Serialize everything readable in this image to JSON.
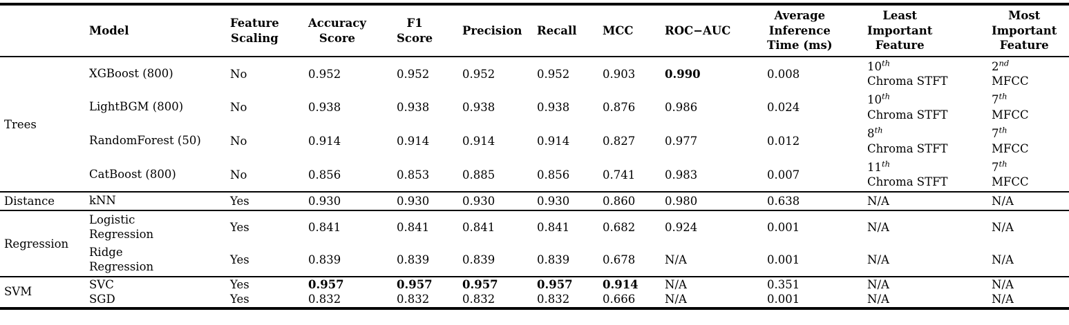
{
  "colors": {
    "text": "#000000",
    "background": "#ffffff",
    "rule": "#000000"
  },
  "headers": {
    "group": "",
    "model": "Model",
    "scaling": "Feature\nScaling",
    "accuracy": "Accuracy\nScore",
    "f1": "F1\nScore",
    "precision": "Precision",
    "recall": "Recall",
    "mcc": "MCC",
    "roc_auc": "ROC−AUC",
    "inference": "Average\nInference\nTime (ms)",
    "least": "Least\nImportant\nFeature",
    "most": "Most\nImportant\nFeature"
  },
  "rows": [
    {
      "group": "Trees",
      "model": "XGBoost (800)",
      "scaling": "No",
      "accuracy": "0.952",
      "f1": "0.952",
      "precision": "0.952",
      "recall": "0.952",
      "mcc": "0.903",
      "roc_auc": "0.990",
      "inference": "0.008",
      "least_ord": "10",
      "least_suf": "th",
      "least_name": "Chroma STFT",
      "most_ord": "2",
      "most_suf": "nd",
      "most_name": "MFCC"
    },
    {
      "model": "LightBGM (800)",
      "scaling": "No",
      "accuracy": "0.938",
      "f1": "0.938",
      "precision": "0.938",
      "recall": "0.938",
      "mcc": "0.876",
      "roc_auc": "0.986",
      "inference": "0.024",
      "least_ord": "10",
      "least_suf": "th",
      "least_name": "Chroma STFT",
      "most_ord": "7",
      "most_suf": "th",
      "most_name": "MFCC"
    },
    {
      "model": "RandomForest (50)",
      "scaling": "No",
      "accuracy": "0.914",
      "f1": "0.914",
      "precision": "0.914",
      "recall": "0.914",
      "mcc": "0.827",
      "roc_auc": "0.977",
      "inference": "0.012",
      "least_ord": "8",
      "least_suf": "th",
      "least_name": "Chroma STFT",
      "most_ord": "7",
      "most_suf": "th",
      "most_name": "MFCC"
    },
    {
      "model": "CatBoost (800)",
      "scaling": "No",
      "accuracy": "0.856",
      "f1": "0.853",
      "precision": "0.885",
      "recall": "0.856",
      "mcc": "0.741",
      "roc_auc": "0.983",
      "inference": "0.007",
      "least_ord": "11",
      "least_suf": "th",
      "least_name": "Chroma STFT",
      "most_ord": "7",
      "most_suf": "th",
      "most_name": "MFCC"
    },
    {
      "group": "Distance",
      "model": "kNN",
      "scaling": "Yes",
      "accuracy": "0.930",
      "f1": "0.930",
      "precision": "0.930",
      "recall": "0.930",
      "mcc": "0.860",
      "roc_auc": "0.980",
      "inference": "0.638",
      "least_ord": "N/A",
      "most_ord": "N/A"
    },
    {
      "group": "Regression",
      "model": "Logistic\nRegression",
      "scaling": "Yes",
      "accuracy": "0.841",
      "f1": "0.841",
      "precision": "0.841",
      "recall": "0.841",
      "mcc": "0.682",
      "roc_auc": "0.924",
      "inference": "0.001",
      "least_ord": "N/A",
      "most_ord": "N/A"
    },
    {
      "model": "Ridge\nRegression",
      "scaling": "Yes",
      "accuracy": "0.839",
      "f1": "0.839",
      "precision": "0.839",
      "recall": "0.839",
      "mcc": "0.678",
      "roc_auc": "N/A",
      "inference": "0.001",
      "least_ord": "N/A",
      "most_ord": "N/A"
    },
    {
      "group": "SVM",
      "model": "SVC",
      "scaling": "Yes",
      "accuracy": "0.957",
      "f1": "0.957",
      "precision": "0.957",
      "recall": "0.957",
      "mcc": "0.914",
      "roc_auc": "N/A",
      "inference": "0.351",
      "least_ord": "N/A",
      "most_ord": "N/A"
    },
    {
      "model": "SGD",
      "scaling": "Yes",
      "accuracy": "0.832",
      "f1": "0.832",
      "precision": "0.832",
      "recall": "0.832",
      "mcc": "0.666",
      "roc_auc": "N/A",
      "inference": "0.001",
      "least_ord": "N/A",
      "most_ord": "N/A"
    }
  ]
}
